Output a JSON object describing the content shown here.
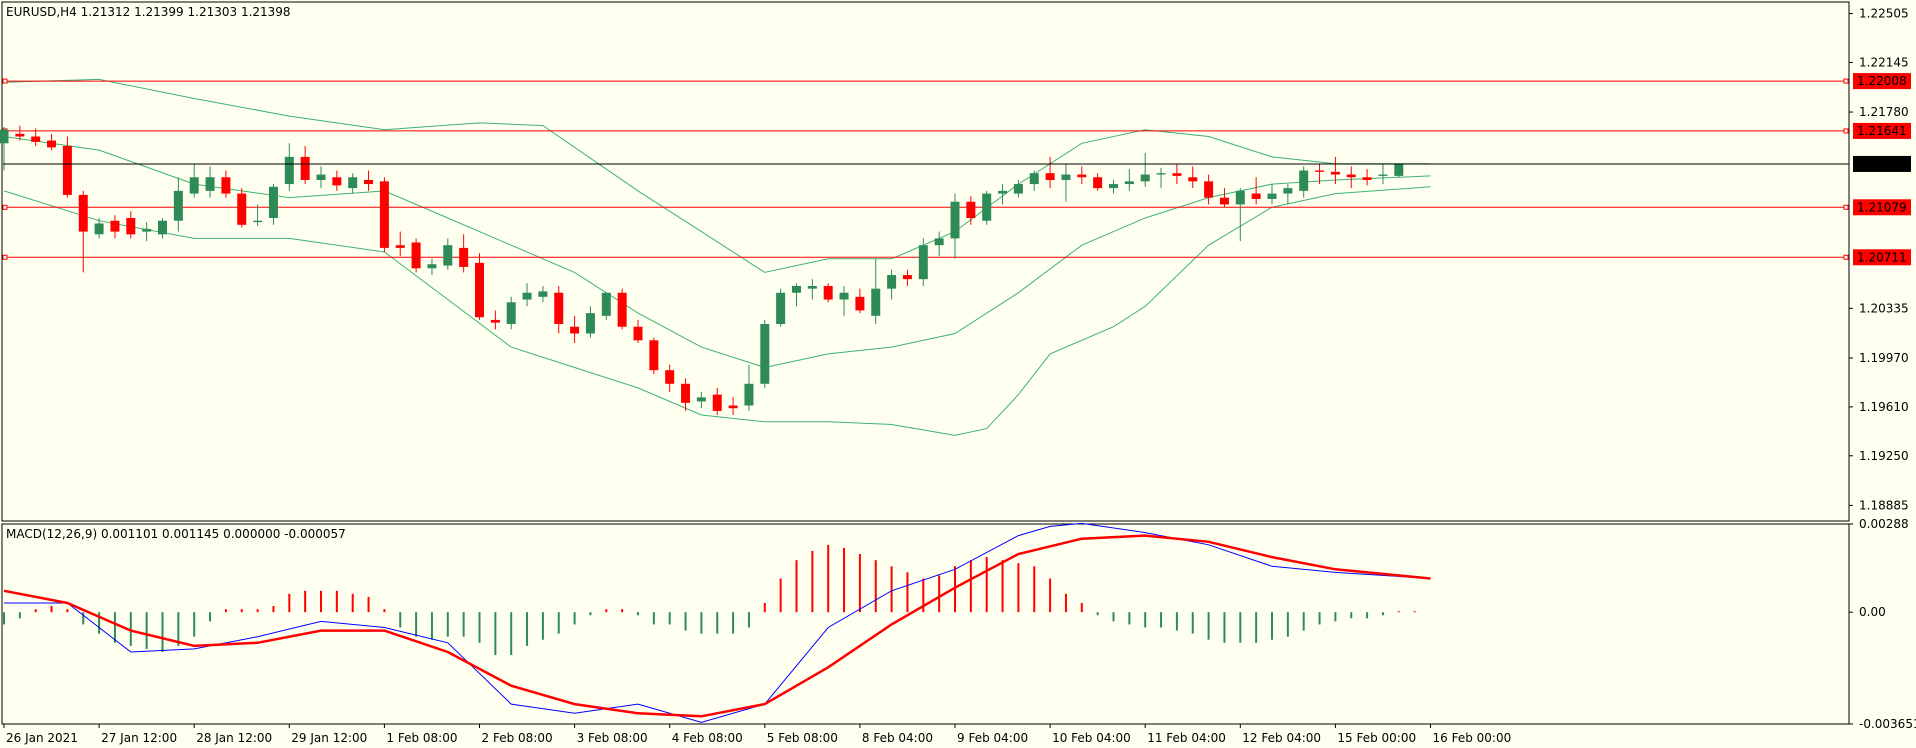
{
  "colors": {
    "background": "#fffff0",
    "frame": "#000000",
    "bull": "#2e8b57",
    "bear": "#ff0000",
    "bands": "#3cb371",
    "level_line": "#ff0000",
    "price_line": "#000000",
    "macd_line": "#0000ff",
    "signal_line": "#ff0000"
  },
  "chart_data": [
    {
      "type": "candlestick",
      "header": "EURUSD,H4  1.21312 1.21399 1.21303 1.21398",
      "symbol": "EURUSD",
      "timeframe": "H4",
      "ohlc_readout": [
        1.21312,
        1.21399,
        1.21303,
        1.21398
      ],
      "ylim": [
        1.1877,
        1.2259
      ],
      "y_ticks": [
        "1.22505",
        "1.22145",
        "1.21780",
        "1.20335",
        "1.19970",
        "1.19610",
        "1.19250",
        "1.18885"
      ],
      "x_ticks": [
        {
          "label": "26 Jan 2021",
          "at": 0
        },
        {
          "label": "27 Jan 12:00",
          "at": 6
        },
        {
          "label": "28 Jan 12:00",
          "at": 12
        },
        {
          "label": "29 Jan 12:00",
          "at": 18
        },
        {
          "label": "1 Feb 08:00",
          "at": 24
        },
        {
          "label": "2 Feb 08:00",
          "at": 30
        },
        {
          "label": "3 Feb 08:00",
          "at": 36
        },
        {
          "label": "4 Feb 08:00",
          "at": 42
        },
        {
          "label": "5 Feb 08:00",
          "at": 48
        },
        {
          "label": "8 Feb 04:00",
          "at": 54
        },
        {
          "label": "9 Feb 04:00",
          "at": 60
        },
        {
          "label": "10 Feb 04:00",
          "at": 66
        },
        {
          "label": "11 Feb 04:00",
          "at": 72
        },
        {
          "label": "12 Feb 04:00",
          "at": 78
        },
        {
          "label": "15 Feb 00:00",
          "at": 84
        },
        {
          "label": "16 Feb 00:00",
          "at": 90
        }
      ],
      "horizontal_levels": [
        {
          "value": 1.22008,
          "label": "1.22008"
        },
        {
          "value": 1.21641,
          "label": "1.21641"
        },
        {
          "value": 1.21079,
          "label": "1.21079"
        },
        {
          "value": 1.20711,
          "label": "1.20711"
        }
      ],
      "current_price": {
        "value": 1.21398,
        "label": "1.21398"
      },
      "candles": [
        [
          1.2155,
          1.2167,
          1.2135,
          1.2165
        ],
        [
          1.2162,
          1.2168,
          1.2157,
          1.216
        ],
        [
          1.216,
          1.2166,
          1.2153,
          1.2156
        ],
        [
          1.2157,
          1.2162,
          1.215,
          1.2152
        ],
        [
          1.2153,
          1.216,
          1.2115,
          1.2117
        ],
        [
          1.2117,
          1.212,
          1.206,
          1.209
        ],
        [
          1.2088,
          1.21,
          1.2085,
          1.2096
        ],
        [
          1.2098,
          1.2102,
          1.2085,
          1.209
        ],
        [
          1.21,
          1.2105,
          1.2085,
          1.2088
        ],
        [
          1.209,
          1.2097,
          1.2083,
          1.2092
        ],
        [
          1.2088,
          1.21,
          1.2085,
          1.2098
        ],
        [
          1.2098,
          1.213,
          1.209,
          1.212
        ],
        [
          1.2118,
          1.214,
          1.2115,
          1.213
        ],
        [
          1.212,
          1.2138,
          1.2115,
          1.213
        ],
        [
          1.213,
          1.2135,
          1.2115,
          1.2118
        ],
        [
          1.2118,
          1.2122,
          1.2093,
          1.2095
        ],
        [
          1.2097,
          1.211,
          1.2094,
          1.2098
        ],
        [
          1.21,
          1.2125,
          1.2095,
          1.2123
        ],
        [
          1.2125,
          1.2155,
          1.212,
          1.2145
        ],
        [
          1.2145,
          1.2153,
          1.2125,
          1.2128
        ],
        [
          1.2128,
          1.2138,
          1.2122,
          1.2132
        ],
        [
          1.213,
          1.2135,
          1.212,
          1.2124
        ],
        [
          1.2122,
          1.2133,
          1.2118,
          1.213
        ],
        [
          1.2128,
          1.2135,
          1.212,
          1.2125
        ],
        [
          1.2127,
          1.213,
          1.2075,
          1.2078
        ],
        [
          1.208,
          1.209,
          1.2072,
          1.2078
        ],
        [
          1.2082,
          1.2085,
          1.206,
          1.2063
        ],
        [
          1.2063,
          1.207,
          1.2058,
          1.2066
        ],
        [
          1.2065,
          1.2085,
          1.2062,
          1.208
        ],
        [
          1.2078,
          1.2088,
          1.206,
          1.2064
        ],
        [
          1.2067,
          1.2074,
          1.2025,
          1.2027
        ],
        [
          1.2025,
          1.2032,
          1.2018,
          1.2023
        ],
        [
          1.2022,
          1.2042,
          1.2018,
          1.2038
        ],
        [
          1.204,
          1.2052,
          1.2035,
          1.2045
        ],
        [
          1.2042,
          1.205,
          1.2038,
          1.2046
        ],
        [
          1.2045,
          1.205,
          1.2015,
          1.2022
        ],
        [
          1.202,
          1.2028,
          1.2008,
          1.2015
        ],
        [
          1.2015,
          1.2035,
          1.2012,
          1.203
        ],
        [
          1.2028,
          1.2042,
          1.2025,
          1.2045
        ],
        [
          1.2045,
          1.2048,
          1.2018,
          1.202
        ],
        [
          1.202,
          1.2025,
          1.2008,
          1.201
        ],
        [
          1.201,
          1.2012,
          1.1985,
          1.1988
        ],
        [
          1.1988,
          1.1992,
          1.1972,
          1.1978
        ],
        [
          1.1978,
          1.1982,
          1.1958,
          1.1964
        ],
        [
          1.1965,
          1.1972,
          1.196,
          1.1968
        ],
        [
          1.197,
          1.1975,
          1.1955,
          1.1958
        ],
        [
          1.1962,
          1.1968,
          1.1955,
          1.196
        ],
        [
          1.1962,
          1.1992,
          1.1958,
          1.1978
        ],
        [
          1.1978,
          1.2025,
          1.1975,
          1.2022
        ],
        [
          1.2022,
          1.2048,
          1.202,
          1.2045
        ],
        [
          1.2045,
          1.2052,
          1.2035,
          1.205
        ],
        [
          1.2048,
          1.2055,
          1.204,
          1.205
        ],
        [
          1.205,
          1.2052,
          1.2038,
          1.204
        ],
        [
          1.204,
          1.205,
          1.2028,
          1.2045
        ],
        [
          1.2042,
          1.2048,
          1.203,
          1.2032
        ],
        [
          1.2028,
          1.207,
          1.2022,
          1.2048
        ],
        [
          1.2048,
          1.2062,
          1.204,
          1.2058
        ],
        [
          1.2058,
          1.2062,
          1.205,
          1.2055
        ],
        [
          1.2055,
          1.2085,
          1.205,
          1.208
        ],
        [
          1.208,
          1.209,
          1.2072,
          1.2085
        ],
        [
          1.2085,
          1.2118,
          1.207,
          1.2112
        ],
        [
          1.2112,
          1.2116,
          1.2095,
          1.21
        ],
        [
          1.2098,
          1.212,
          1.2095,
          1.2118
        ],
        [
          1.2118,
          1.2125,
          1.211,
          1.212
        ],
        [
          1.2118,
          1.2128,
          1.2115,
          1.2125
        ],
        [
          1.2125,
          1.2135,
          1.212,
          1.2133
        ],
        [
          1.2133,
          1.2145,
          1.2122,
          1.2128
        ],
        [
          1.2128,
          1.214,
          1.2112,
          1.2132
        ],
        [
          1.2132,
          1.2138,
          1.2125,
          1.213
        ],
        [
          1.213,
          1.2133,
          1.212,
          1.2122
        ],
        [
          1.2122,
          1.2128,
          1.2118,
          1.2125
        ],
        [
          1.2125,
          1.2136,
          1.212,
          1.2127
        ],
        [
          1.2127,
          1.2148,
          1.2123,
          1.2132
        ],
        [
          1.2132,
          1.2137,
          1.2122,
          1.2133
        ],
        [
          1.2133,
          1.214,
          1.2125,
          1.2131
        ],
        [
          1.213,
          1.2138,
          1.2122,
          1.2127
        ],
        [
          1.2127,
          1.2132,
          1.211,
          1.2115
        ],
        [
          1.2115,
          1.2122,
          1.2108,
          1.211
        ],
        [
          1.211,
          1.2122,
          1.2083,
          1.212
        ],
        [
          1.2118,
          1.213,
          1.211,
          1.2114
        ],
        [
          1.2114,
          1.2125,
          1.211,
          1.2118
        ],
        [
          1.2118,
          1.2125,
          1.211,
          1.2122
        ],
        [
          1.212,
          1.2138,
          1.2115,
          1.2135
        ],
        [
          1.2135,
          1.214,
          1.2125,
          1.2134
        ],
        [
          1.2134,
          1.2145,
          1.2125,
          1.2132
        ],
        [
          1.2132,
          1.2138,
          1.2122,
          1.213
        ],
        [
          1.213,
          1.2136,
          1.2124,
          1.2128
        ],
        [
          1.2131,
          1.214,
          1.2125,
          1.2132
        ],
        [
          1.2131,
          1.214,
          1.213,
          1.214
        ]
      ],
      "bollinger_bands": {
        "upper": [
          [
            0,
            1.22
          ],
          [
            6,
            1.2202
          ],
          [
            12,
            1.2188
          ],
          [
            18,
            1.2175
          ],
          [
            24,
            1.2165
          ],
          [
            30,
            1.217
          ],
          [
            34,
            1.2168
          ],
          [
            40,
            1.212
          ],
          [
            44,
            1.209
          ],
          [
            48,
            1.206
          ],
          [
            52,
            1.207
          ],
          [
            56,
            1.207
          ],
          [
            60,
            1.209
          ],
          [
            64,
            1.2125
          ],
          [
            68,
            1.2155
          ],
          [
            72,
            1.2165
          ],
          [
            76,
            1.216
          ],
          [
            80,
            1.2145
          ],
          [
            84,
            1.214
          ],
          [
            86,
            1.214
          ],
          [
            90,
            1.214
          ]
        ],
        "middle": [
          [
            0,
            1.216
          ],
          [
            6,
            1.215
          ],
          [
            12,
            1.2125
          ],
          [
            18,
            1.2115
          ],
          [
            24,
            1.212
          ],
          [
            28,
            1.21
          ],
          [
            32,
            1.208
          ],
          [
            36,
            1.206
          ],
          [
            40,
            1.203
          ],
          [
            44,
            1.2005
          ],
          [
            48,
            1.199
          ],
          [
            52,
            1.2
          ],
          [
            56,
            1.2005
          ],
          [
            60,
            1.2015
          ],
          [
            64,
            1.2045
          ],
          [
            68,
            1.208
          ],
          [
            72,
            1.21
          ],
          [
            76,
            1.2115
          ],
          [
            80,
            1.2125
          ],
          [
            84,
            1.2128
          ],
          [
            90,
            1.2131
          ]
        ],
        "lower": [
          [
            0,
            1.212
          ],
          [
            6,
            1.2098
          ],
          [
            12,
            1.2085
          ],
          [
            18,
            1.2085
          ],
          [
            24,
            1.2075
          ],
          [
            28,
            1.204
          ],
          [
            32,
            1.2005
          ],
          [
            36,
            1.199
          ],
          [
            40,
            1.1975
          ],
          [
            44,
            1.1955
          ],
          [
            48,
            1.195
          ],
          [
            52,
            1.195
          ],
          [
            56,
            1.1948
          ],
          [
            60,
            1.194
          ],
          [
            62,
            1.1945
          ],
          [
            64,
            1.197
          ],
          [
            66,
            1.2
          ],
          [
            70,
            1.202
          ],
          [
            72,
            1.2035
          ],
          [
            76,
            1.208
          ],
          [
            80,
            1.2108
          ],
          [
            84,
            1.2118
          ],
          [
            90,
            1.2123
          ]
        ]
      }
    },
    {
      "type": "macd",
      "header": "MACD(12,26,9) 0.001101 0.001145 0.000000 -0.000057",
      "params": [
        12,
        26,
        9
      ],
      "readout": [
        0.001101,
        0.001145,
        0.0,
        -5.7e-05
      ],
      "ylim": [
        -0.003651,
        0.00288
      ],
      "y_ticks": [
        "0.00288",
        "0.00",
        "-0.003651"
      ],
      "histogram": [
        -0.0004,
        -0.0002,
        0.0001,
        0.0002,
        0.0001,
        -0.0004,
        -0.0007,
        -0.001,
        -0.0011,
        -0.0012,
        -0.0013,
        -0.0011,
        -0.0008,
        -0.0003,
        0.0001,
        0.0001,
        0.0001,
        0.0002,
        0.0006,
        0.0007,
        0.0007,
        0.0007,
        0.0006,
        0.0005,
        0.0001,
        -0.0005,
        -0.0008,
        -0.0009,
        -0.0008,
        -0.0008,
        -0.001,
        -0.0014,
        -0.0014,
        -0.0011,
        -0.0009,
        -0.0007,
        -0.0004,
        -0.0001,
        0.0001,
        0.0001,
        -0.0001,
        -0.0004,
        -0.0004,
        -0.0006,
        -0.0007,
        -0.0007,
        -0.0007,
        -0.0005,
        0.0003,
        0.0011,
        0.0017,
        0.002,
        0.0022,
        0.0021,
        0.0019,
        0.0017,
        0.0015,
        0.0013,
        0.0011,
        0.0012,
        0.0015,
        0.0017,
        0.0018,
        0.0017,
        0.0016,
        0.0015,
        0.0011,
        0.0006,
        0.0003,
        -0.0001,
        -0.0003,
        -0.0004,
        -0.0005,
        -0.0005,
        -0.0006,
        -0.0007,
        -0.0009,
        -0.001,
        -0.001,
        -0.001,
        -0.0009,
        -0.0008,
        -0.0006,
        -0.0004,
        -0.0003,
        -0.0002,
        -0.0002,
        -0.0001,
        0.0,
        0.0
      ],
      "macd_line": [
        [
          0,
          0.0003
        ],
        [
          4,
          0.0003
        ],
        [
          8,
          -0.0013
        ],
        [
          12,
          -0.0012
        ],
        [
          16,
          -0.0008
        ],
        [
          20,
          -0.0003
        ],
        [
          24,
          -0.0005
        ],
        [
          28,
          -0.001
        ],
        [
          32,
          -0.003
        ],
        [
          36,
          -0.0033
        ],
        [
          40,
          -0.003
        ],
        [
          44,
          -0.0036
        ],
        [
          48,
          -0.003
        ],
        [
          52,
          -0.0005
        ],
        [
          56,
          0.0007
        ],
        [
          60,
          0.0014
        ],
        [
          64,
          0.0025
        ],
        [
          66,
          0.0028
        ],
        [
          68,
          0.0029
        ],
        [
          72,
          0.0026
        ],
        [
          76,
          0.0022
        ],
        [
          80,
          0.0015
        ],
        [
          84,
          0.0013
        ],
        [
          90,
          0.0011
        ]
      ],
      "signal_line": [
        [
          0,
          0.0007
        ],
        [
          4,
          0.0003
        ],
        [
          8,
          -0.0006
        ],
        [
          12,
          -0.0011
        ],
        [
          16,
          -0.001
        ],
        [
          20,
          -0.0006
        ],
        [
          24,
          -0.0006
        ],
        [
          28,
          -0.0013
        ],
        [
          32,
          -0.0024
        ],
        [
          36,
          -0.003
        ],
        [
          40,
          -0.0033
        ],
        [
          44,
          -0.0034
        ],
        [
          48,
          -0.003
        ],
        [
          52,
          -0.0018
        ],
        [
          56,
          -0.0004
        ],
        [
          60,
          0.0008
        ],
        [
          64,
          0.0019
        ],
        [
          68,
          0.0024
        ],
        [
          72,
          0.0025
        ],
        [
          76,
          0.0023
        ],
        [
          80,
          0.0018
        ],
        [
          84,
          0.0014
        ],
        [
          90,
          0.0011
        ]
      ]
    }
  ]
}
